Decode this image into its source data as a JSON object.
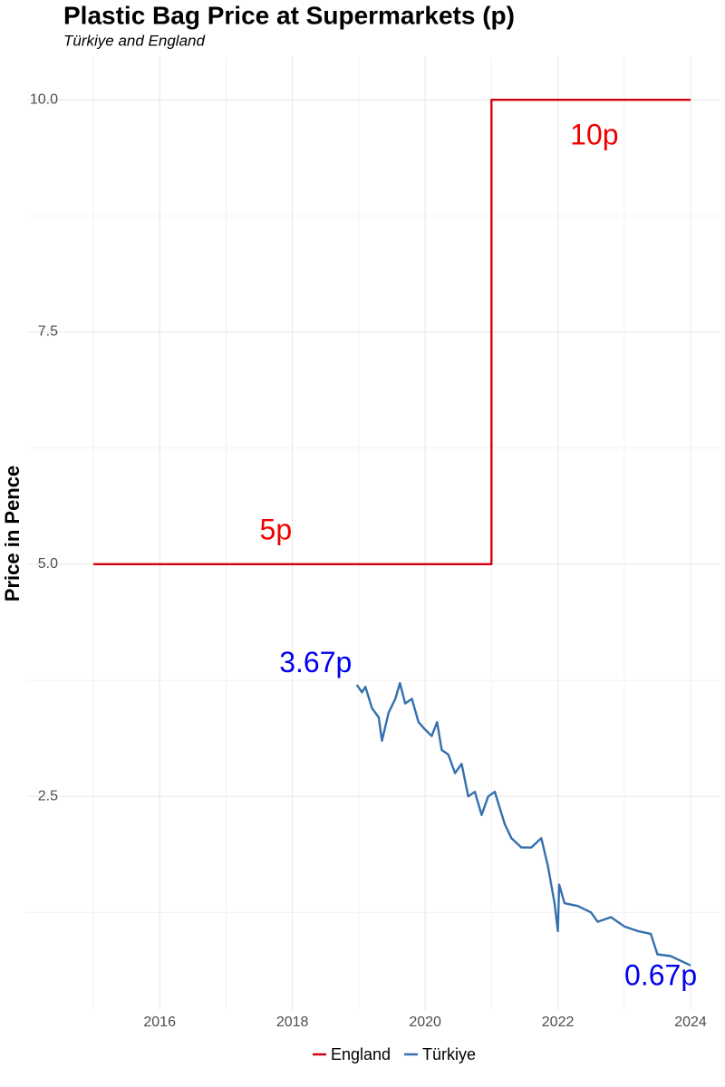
{
  "chart_data": {
    "type": "line",
    "title": "Plastic Bag Price at Supermarkets (p)",
    "subtitle": "Türkiye and England",
    "ylabel": "Price in Pence",
    "xlim": [
      2014.55,
      2024.45
    ],
    "ylim": [
      0.2,
      10.47
    ],
    "xticks": [
      2016,
      2018,
      2020,
      2022,
      2024
    ],
    "xminorticks": [
      2015,
      2017,
      2019,
      2021,
      2023
    ],
    "yticks": [
      {
        "value": 2.5,
        "label": "2.5"
      },
      {
        "value": 5,
        "label": "5.0"
      },
      {
        "value": 7.5,
        "label": "7.5"
      },
      {
        "value": 10,
        "label": "10.0"
      }
    ],
    "yminorticks": [
      1.25,
      3.75,
      6.25,
      8.75
    ],
    "grid": true,
    "legend": "bottom",
    "series": [
      {
        "name": "England",
        "color": "#d7000f",
        "x": [
          2015,
          2021,
          2021,
          2024
        ],
        "values": [
          5,
          5,
          10,
          10
        ]
      },
      {
        "name": "Türkiye",
        "color": "#3370ad",
        "x": [
          2018.97,
          2019.05,
          2019.1,
          2019.2,
          2019.3,
          2019.35,
          2019.45,
          2019.55,
          2019.62,
          2019.7,
          2019.8,
          2019.9,
          2020.0,
          2020.1,
          2020.18,
          2020.25,
          2020.35,
          2020.45,
          2020.55,
          2020.65,
          2020.75,
          2020.85,
          2020.95,
          2021.05,
          2021.2,
          2021.3,
          2021.45,
          2021.6,
          2021.75,
          2021.85,
          2021.95,
          2022.0,
          2022.02,
          2022.1,
          2022.3,
          2022.5,
          2022.6,
          2022.8,
          2023.0,
          2023.2,
          2023.4,
          2023.5,
          2023.7,
          2024.0
        ],
        "values": [
          3.7,
          3.62,
          3.68,
          3.45,
          3.35,
          3.1,
          3.4,
          3.55,
          3.72,
          3.5,
          3.55,
          3.3,
          3.22,
          3.15,
          3.3,
          3.0,
          2.95,
          2.75,
          2.85,
          2.5,
          2.55,
          2.3,
          2.5,
          2.55,
          2.2,
          2.05,
          1.95,
          1.95,
          2.05,
          1.75,
          1.35,
          1.05,
          1.55,
          1.35,
          1.32,
          1.25,
          1.15,
          1.2,
          1.1,
          1.05,
          1.02,
          0.8,
          0.78,
          0.68
        ]
      }
    ],
    "annotations": [
      {
        "text": "10p",
        "x": 2022.55,
        "y": 9.6,
        "color": "#f00000"
      },
      {
        "text": "5p",
        "x": 2017.75,
        "y": 5.35,
        "color": "#f00000"
      },
      {
        "text": "3.67p",
        "x": 2018.35,
        "y": 3.92,
        "color": "#0000ee"
      },
      {
        "text": "0.67p",
        "x": 2023.55,
        "y": 0.55,
        "color": "#0000ee"
      }
    ]
  }
}
